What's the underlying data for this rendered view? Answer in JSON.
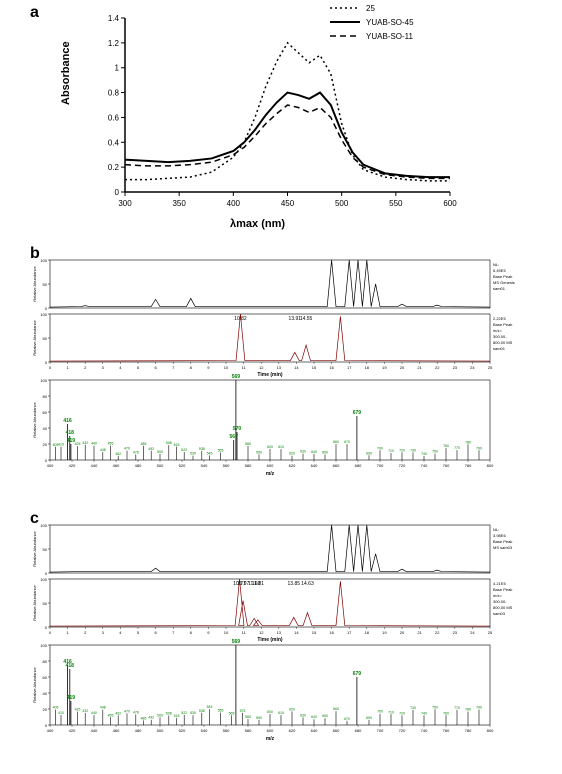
{
  "panels": {
    "a": {
      "label": "a",
      "type": "line",
      "x_label": "λmax (nm)",
      "y_label": "Absorbance",
      "xlim": [
        300,
        600
      ],
      "ylim": [
        0,
        1.4
      ],
      "xtick_step": 50,
      "ytick_step": 0.2,
      "xtick_labels": [
        "300",
        "350",
        "400",
        "450",
        "500",
        "550",
        "600"
      ],
      "ytick_labels": [
        "0",
        "0.2",
        "0.4",
        "0.6",
        "0.8",
        "1",
        "1.2",
        "1.4"
      ],
      "background_color": "#ffffff",
      "axis_color": "#000000",
      "label_fontsize": 11,
      "tick_fontsize": 8,
      "legend_fontsize": 7,
      "legend_position": "top-right",
      "series": [
        {
          "name": "25",
          "color": "#000000",
          "dash": "dotted",
          "line_width": 1.5,
          "x": [
            300,
            320,
            340,
            360,
            380,
            400,
            410,
            420,
            430,
            440,
            450,
            460,
            470,
            480,
            490,
            500,
            510,
            520,
            540,
            560,
            580,
            600
          ],
          "y": [
            0.1,
            0.1,
            0.11,
            0.12,
            0.16,
            0.28,
            0.4,
            0.6,
            0.85,
            1.05,
            1.2,
            1.12,
            1.04,
            1.1,
            0.95,
            0.55,
            0.3,
            0.18,
            0.12,
            0.1,
            0.09,
            0.09
          ]
        },
        {
          "name": "YUAB-SO-45",
          "color": "#000000",
          "dash": "solid",
          "line_width": 2,
          "x": [
            300,
            320,
            340,
            360,
            380,
            400,
            410,
            420,
            430,
            440,
            450,
            460,
            470,
            480,
            490,
            500,
            510,
            520,
            540,
            560,
            580,
            600
          ],
          "y": [
            0.26,
            0.25,
            0.24,
            0.25,
            0.27,
            0.33,
            0.4,
            0.5,
            0.62,
            0.72,
            0.8,
            0.78,
            0.75,
            0.8,
            0.7,
            0.48,
            0.32,
            0.22,
            0.15,
            0.13,
            0.12,
            0.12
          ]
        },
        {
          "name": "YUAB-SO-11",
          "color": "#000000",
          "dash": "dashed",
          "line_width": 1.5,
          "x": [
            300,
            320,
            340,
            360,
            380,
            400,
            410,
            420,
            430,
            440,
            450,
            460,
            470,
            480,
            490,
            500,
            510,
            520,
            540,
            560,
            580,
            600
          ],
          "y": [
            0.22,
            0.21,
            0.21,
            0.22,
            0.24,
            0.3,
            0.36,
            0.45,
            0.55,
            0.63,
            0.7,
            0.68,
            0.64,
            0.68,
            0.6,
            0.42,
            0.28,
            0.2,
            0.14,
            0.12,
            0.11,
            0.11
          ]
        }
      ]
    },
    "b": {
      "label": "b",
      "subplots": [
        {
          "type": "chromatogram",
          "y_label": "Relative Abundance",
          "annotations": [
            "NL:",
            "5.49E5",
            "Base Peak",
            "MS Genesis",
            "sam01"
          ],
          "color": "#000000",
          "peaks_x": [
            2,
            6,
            8,
            16,
            17,
            17.5,
            18,
            18.5,
            20,
            22
          ],
          "peaks_y": [
            5,
            18,
            20,
            100,
            100,
            100,
            100,
            50,
            8,
            6
          ]
        },
        {
          "type": "chromatogram",
          "x_label": "Time (min)",
          "y_label": "Relative Abundance",
          "xlim": [
            0,
            25
          ],
          "annotations": [
            "2.22E5",
            "Base Peak",
            "m/z=",
            "300.00-",
            "800.00 MS",
            "sam01"
          ],
          "color": "#800000",
          "peak_labels": [
            {
              "x": 10.82,
              "text": "10.82"
            },
            {
              "x": 13.91,
              "text": "13.91"
            },
            {
              "x": 14.55,
              "text": "14.55"
            }
          ],
          "peaks_x": [
            10.82,
            13.91,
            14.55,
            16.5
          ],
          "peaks_y": [
            100,
            20,
            35,
            95
          ]
        },
        {
          "type": "mass-spectrum",
          "x_label": "m/z",
          "y_label": "Relative Abundance",
          "xlim": [
            400,
            800
          ],
          "ylim": [
            0,
            100
          ],
          "color": "#000000",
          "label_color": "#008000",
          "labeled_peaks": [
            {
              "mz": 416,
              "int": 45,
              "label": "416"
            },
            {
              "mz": 418,
              "int": 30,
              "label": "418"
            },
            {
              "mz": 419,
              "int": 20,
              "label": "419"
            },
            {
              "mz": 569,
              "int": 100,
              "label": "569"
            },
            {
              "mz": 567,
              "int": 25,
              "label": "567"
            },
            {
              "mz": 570,
              "int": 35,
              "label": "570"
            },
            {
              "mz": 679,
              "int": 55,
              "label": "679"
            }
          ],
          "noise_peaks": [
            405,
            410,
            425,
            432,
            440,
            448,
            455,
            462,
            470,
            478,
            485,
            492,
            500,
            508,
            515,
            522,
            530,
            538,
            545,
            555,
            580,
            590,
            600,
            610,
            620,
            630,
            640,
            650,
            660,
            670,
            690,
            700,
            710,
            720,
            730,
            740,
            750,
            760,
            770,
            780,
            790
          ]
        }
      ]
    },
    "c": {
      "label": "c",
      "subplots": [
        {
          "type": "chromatogram",
          "y_label": "Relative Abundance",
          "annotations": [
            "NL:",
            "3.98E6",
            "Base Peak",
            "MS sam03"
          ],
          "color": "#000000",
          "peaks_x": [
            2,
            6,
            16,
            17,
            17.5,
            18,
            18.5,
            20,
            22
          ],
          "peaks_y": [
            3,
            10,
            100,
            100,
            100,
            100,
            40,
            8,
            6
          ]
        },
        {
          "type": "chromatogram",
          "x_label": "Time (min)",
          "y_label": "Relative Abundance",
          "xlim": [
            0,
            25
          ],
          "annotations": [
            "4.21E5",
            "Base Peak",
            "m/z=",
            "300.00-",
            "800.00 MS",
            "sam03"
          ],
          "color": "#800000",
          "peak_labels": [
            {
              "x": 10.77,
              "text": "10.77"
            },
            {
              "x": 10.97,
              "text": "10.97"
            },
            {
              "x": 11.6,
              "text": "11.60"
            },
            {
              "x": 11.81,
              "text": "11.81"
            },
            {
              "x": 13.85,
              "text": "13.85"
            },
            {
              "x": 14.63,
              "text": "14.63"
            }
          ],
          "peaks_x": [
            10.77,
            10.97,
            11.6,
            11.81,
            13.85,
            14.63,
            16.5
          ],
          "peaks_y": [
            100,
            55,
            18,
            15,
            20,
            30,
            95
          ]
        },
        {
          "type": "mass-spectrum",
          "x_label": "m/z",
          "y_label": "Relative Abundance",
          "xlim": [
            400,
            800
          ],
          "ylim": [
            0,
            100
          ],
          "color": "#000000",
          "label_color": "#008000",
          "labeled_peaks": [
            {
              "mz": 416,
              "int": 75,
              "label": "416"
            },
            {
              "mz": 418,
              "int": 70,
              "label": "418"
            },
            {
              "mz": 419,
              "int": 30,
              "label": "419"
            },
            {
              "mz": 569,
              "int": 100,
              "label": "569"
            },
            {
              "mz": 679,
              "int": 60,
              "label": "679"
            }
          ],
          "noise_peaks": [
            405,
            410,
            425,
            432,
            440,
            448,
            455,
            462,
            470,
            478,
            485,
            492,
            500,
            508,
            515,
            522,
            530,
            538,
            545,
            555,
            565,
            575,
            580,
            590,
            600,
            610,
            620,
            630,
            640,
            650,
            660,
            670,
            690,
            700,
            710,
            720,
            730,
            740,
            750,
            760,
            770,
            780,
            790
          ]
        }
      ]
    }
  }
}
